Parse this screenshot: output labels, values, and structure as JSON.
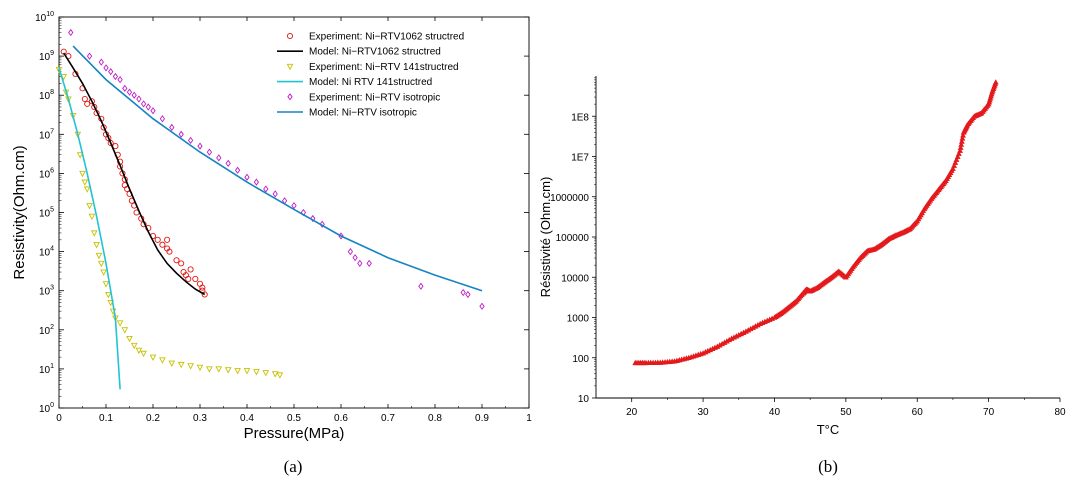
{
  "colors": {
    "exp_1062": "#e3150f",
    "model_1062": "#000000",
    "exp_141": "#c8c000",
    "model_141": "#22c3d3",
    "exp_iso": "#c21bc8",
    "model_iso": "#1683c4",
    "chart_b": "#e31a1c"
  },
  "chart_data": [
    {
      "type": "scatter",
      "panel": "(a)",
      "xlabel": "Pressure(MPa)",
      "ylabel": "Resistivity(Ohm.cm)",
      "xlim": [
        0,
        1
      ],
      "ylim": [
        1,
        10000000000
      ],
      "yscale": "log",
      "grid": false,
      "legend_position": "top-right",
      "x_ticks": [
        "0",
        "0.1",
        "0.2",
        "0.3",
        "0.4",
        "0.5",
        "0.6",
        "0.7",
        "0.8",
        "0.9",
        "1"
      ],
      "series": [
        {
          "name": "Experiment: Ni−RTV1062 structred",
          "kind": "points",
          "marker": "circle",
          "color_key": "exp_1062",
          "points": [
            [
              0.01,
              1300000000
            ],
            [
              0.02,
              1000000000
            ],
            [
              0.035,
              350000000
            ],
            [
              0.05,
              150000000
            ],
            [
              0.055,
              80000000
            ],
            [
              0.06,
              60000000
            ],
            [
              0.07,
              70000000
            ],
            [
              0.075,
              50000000
            ],
            [
              0.08,
              35000000
            ],
            [
              0.09,
              25000000
            ],
            [
              0.095,
              15000000
            ],
            [
              0.1,
              10000000
            ],
            [
              0.105,
              8000000
            ],
            [
              0.11,
              6000000
            ],
            [
              0.12,
              5000000
            ],
            [
              0.125,
              3000000
            ],
            [
              0.13,
              2000000
            ],
            [
              0.13,
              1500000
            ],
            [
              0.135,
              1000000
            ],
            [
              0.14,
              700000
            ],
            [
              0.14,
              500000
            ],
            [
              0.145,
              400000
            ],
            [
              0.15,
              300000
            ],
            [
              0.155,
              200000
            ],
            [
              0.16,
              150000
            ],
            [
              0.165,
              100000
            ],
            [
              0.175,
              70000
            ],
            [
              0.18,
              50000
            ],
            [
              0.19,
              40000
            ],
            [
              0.2,
              25000
            ],
            [
              0.21,
              20000
            ],
            [
              0.22,
              15000
            ],
            [
              0.23,
              12000
            ],
            [
              0.23,
              20000
            ],
            [
              0.235,
              10000
            ],
            [
              0.25,
              6000
            ],
            [
              0.26,
              5000
            ],
            [
              0.265,
              3000
            ],
            [
              0.27,
              2500
            ],
            [
              0.275,
              2000
            ],
            [
              0.28,
              3500
            ],
            [
              0.29,
              2000
            ],
            [
              0.3,
              1500
            ],
            [
              0.305,
              1200
            ],
            [
              0.305,
              1000
            ],
            [
              0.31,
              800
            ]
          ]
        },
        {
          "name": "Model: Ni−RTV1062 structred",
          "kind": "line",
          "color_key": "model_1062",
          "points": [
            [
              0.01,
              1200000000
            ],
            [
              0.03,
              500000000
            ],
            [
              0.05,
              200000000
            ],
            [
              0.07,
              70000000
            ],
            [
              0.09,
              22000000
            ],
            [
              0.11,
              6000000
            ],
            [
              0.13,
              1600000
            ],
            [
              0.15,
              400000
            ],
            [
              0.17,
              110000
            ],
            [
              0.19,
              32000
            ],
            [
              0.21,
              11000
            ],
            [
              0.23,
              5000
            ],
            [
              0.25,
              2800
            ],
            [
              0.27,
              1700
            ],
            [
              0.29,
              1100
            ],
            [
              0.31,
              800
            ]
          ]
        },
        {
          "name": "Experiment: Ni−RTV 141structred",
          "kind": "points",
          "marker": "triangle-down",
          "color_key": "exp_141",
          "points": [
            [
              0.0,
              450000000
            ],
            [
              0.01,
              300000000
            ],
            [
              0.015,
              120000000
            ],
            [
              0.02,
              80000000
            ],
            [
              0.03,
              30000000
            ],
            [
              0.04,
              10000000
            ],
            [
              0.045,
              3000000
            ],
            [
              0.05,
              1000000
            ],
            [
              0.055,
              600000
            ],
            [
              0.06,
              400000
            ],
            [
              0.065,
              150000
            ],
            [
              0.07,
              80000
            ],
            [
              0.075,
              30000
            ],
            [
              0.08,
              15000
            ],
            [
              0.085,
              8000
            ],
            [
              0.09,
              5000
            ],
            [
              0.095,
              3000
            ],
            [
              0.1,
              1500
            ],
            [
              0.105,
              800
            ],
            [
              0.11,
              500
            ],
            [
              0.115,
              300
            ],
            [
              0.12,
              200
            ],
            [
              0.13,
              150
            ],
            [
              0.14,
              100
            ],
            [
              0.15,
              60
            ],
            [
              0.16,
              40
            ],
            [
              0.17,
              30
            ],
            [
              0.18,
              25
            ],
            [
              0.2,
              20
            ],
            [
              0.22,
              17
            ],
            [
              0.24,
              14
            ],
            [
              0.26,
              13
            ],
            [
              0.28,
              12
            ],
            [
              0.3,
              11
            ],
            [
              0.32,
              10
            ],
            [
              0.34,
              10
            ],
            [
              0.36,
              9.5
            ],
            [
              0.38,
              9
            ],
            [
              0.4,
              9
            ],
            [
              0.42,
              8.5
            ],
            [
              0.44,
              8
            ],
            [
              0.46,
              7.5
            ],
            [
              0.47,
              7
            ]
          ]
        },
        {
          "name": "Model: Ni RTV 141structred",
          "kind": "line",
          "color_key": "model_141",
          "points": [
            [
              0.0,
              500000000
            ],
            [
              0.02,
              80000000
            ],
            [
              0.04,
              10000000
            ],
            [
              0.06,
              1000000
            ],
            [
              0.08,
              80000
            ],
            [
              0.1,
              5000
            ],
            [
              0.12,
              200
            ],
            [
              0.13,
              3
            ]
          ]
        },
        {
          "name": "Experiment: Ni−RTV isotropic",
          "kind": "points",
          "marker": "diamond",
          "color_key": "exp_iso",
          "points": [
            [
              0.025,
              4000000000
            ],
            [
              0.065,
              1000000000
            ],
            [
              0.09,
              700000000
            ],
            [
              0.1,
              500000000
            ],
            [
              0.11,
              400000000
            ],
            [
              0.12,
              300000000
            ],
            [
              0.13,
              250000000
            ],
            [
              0.14,
              150000000
            ],
            [
              0.15,
              120000000
            ],
            [
              0.16,
              100000000
            ],
            [
              0.17,
              80000000
            ],
            [
              0.18,
              60000000
            ],
            [
              0.19,
              50000000
            ],
            [
              0.2,
              40000000
            ],
            [
              0.22,
              25000000
            ],
            [
              0.24,
              15000000
            ],
            [
              0.26,
              10000000
            ],
            [
              0.28,
              7000000
            ],
            [
              0.3,
              5000000
            ],
            [
              0.32,
              3500000
            ],
            [
              0.34,
              2500000
            ],
            [
              0.36,
              1800000
            ],
            [
              0.38,
              1200000
            ],
            [
              0.4,
              800000
            ],
            [
              0.42,
              600000
            ],
            [
              0.44,
              400000
            ],
            [
              0.46,
              300000
            ],
            [
              0.48,
              200000
            ],
            [
              0.5,
              150000
            ],
            [
              0.52,
              100000
            ],
            [
              0.54,
              70000
            ],
            [
              0.56,
              50000
            ],
            [
              0.6,
              25000
            ],
            [
              0.62,
              10000
            ],
            [
              0.63,
              7000
            ],
            [
              0.64,
              5000
            ],
            [
              0.66,
              5000
            ],
            [
              0.77,
              1300
            ],
            [
              0.86,
              900
            ],
            [
              0.87,
              800
            ],
            [
              0.9,
              400
            ]
          ]
        },
        {
          "name": "Model: Ni−RTV isotropic",
          "kind": "line",
          "color_key": "model_iso",
          "points": [
            [
              0.03,
              1800000000
            ],
            [
              0.1,
              250000000
            ],
            [
              0.2,
              25000000
            ],
            [
              0.3,
              3500000
            ],
            [
              0.4,
              600000
            ],
            [
              0.5,
              120000
            ],
            [
              0.6,
              25000
            ],
            [
              0.7,
              7000
            ],
            [
              0.8,
              2500
            ],
            [
              0.9,
              1000
            ]
          ]
        }
      ]
    },
    {
      "type": "scatter",
      "panel": "(b)",
      "xlabel": "T°C",
      "ylabel": "Résistivité (Ohm.cm)",
      "xlim": [
        15,
        80
      ],
      "ylim": [
        10,
        1000000000
      ],
      "yscale": "log",
      "grid": false,
      "x_ticks": [
        "20",
        "30",
        "40",
        "50",
        "60",
        "70",
        "80"
      ],
      "y_ticks": [
        "10",
        "100",
        "1000",
        "10000",
        "100000",
        "1000000",
        "1E7",
        "1E8"
      ],
      "series": [
        {
          "marker": "triangle-up",
          "color_key": "chart_b",
          "points": [
            [
              20.5,
              75
            ],
            [
              22,
              75
            ],
            [
              24,
              76
            ],
            [
              26,
              82
            ],
            [
              28,
              100
            ],
            [
              30,
              130
            ],
            [
              32,
              190
            ],
            [
              34,
              300
            ],
            [
              36,
              450
            ],
            [
              38,
              700
            ],
            [
              40,
              1000
            ],
            [
              41,
              1300
            ],
            [
              42,
              1800
            ],
            [
              43,
              2500
            ],
            [
              44,
              4000
            ],
            [
              44.5,
              5000
            ],
            [
              45,
              4500
            ],
            [
              46,
              5500
            ],
            [
              47,
              7500
            ],
            [
              48,
              10000
            ],
            [
              49,
              14000
            ],
            [
              50,
              10000
            ],
            [
              51,
              18000
            ],
            [
              52,
              30000
            ],
            [
              53,
              45000
            ],
            [
              54,
              50000
            ],
            [
              55,
              65000
            ],
            [
              56,
              90000
            ],
            [
              57,
              110000
            ],
            [
              58,
              130000
            ],
            [
              59,
              160000
            ],
            [
              60,
              250000
            ],
            [
              61,
              500000
            ],
            [
              62,
              900000
            ],
            [
              63,
              1500000
            ],
            [
              64,
              2500000
            ],
            [
              65,
              5000000
            ],
            [
              66,
              14000000
            ],
            [
              66.5,
              40000000
            ],
            [
              67,
              60000000
            ],
            [
              68,
              100000000
            ],
            [
              69,
              120000000
            ],
            [
              70,
              200000000
            ],
            [
              70.5,
              400000000
            ],
            [
              71,
              700000000
            ]
          ]
        }
      ]
    }
  ],
  "captions": {
    "a": "(a)",
    "b": "(b)"
  }
}
